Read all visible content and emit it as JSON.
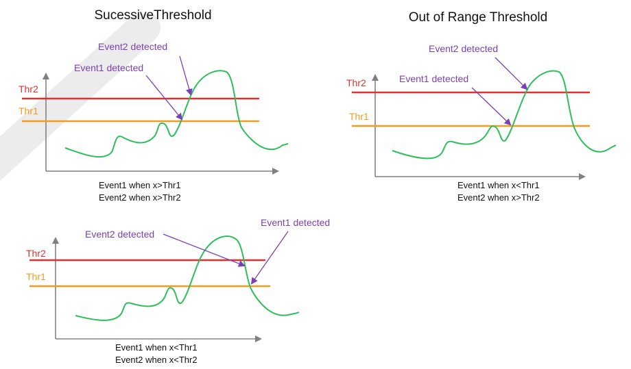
{
  "colors": {
    "thr2": "#e0302f",
    "thr1": "#f39b1b",
    "signal": "#2bbf5a",
    "event": "#7b3fb5",
    "axis": "#808080",
    "watermark": "#e9e9e9"
  },
  "panels": {
    "successive": {
      "title": "SucessiveThreshold",
      "thr2_label": "Thr2",
      "thr1_label": "Thr1",
      "event2_label": "Event2  detected",
      "event1_label": "Event1  detected",
      "caption_line1": "Event1  when  x>Thr1",
      "caption_line2": "Event2  when  x>Thr2"
    },
    "out_of_range": {
      "title": "Out of Range Threshold",
      "thr2_label": "Thr2",
      "thr1_label": "Thr1",
      "event2_label": "Event2  detected",
      "event1_label": "Event1  detected",
      "caption_line1": "Event1  when  x<Thr1",
      "caption_line2": "Event2  when  x>Thr2"
    },
    "falling": {
      "thr2_label": "Thr2",
      "thr1_label": "Thr1",
      "event2_label": "Event2  detected",
      "event1_label": "Event1  detected",
      "caption_line1": "Event1  when  x<Thr1",
      "caption_line2": "Event2  when  x<Thr2"
    }
  }
}
